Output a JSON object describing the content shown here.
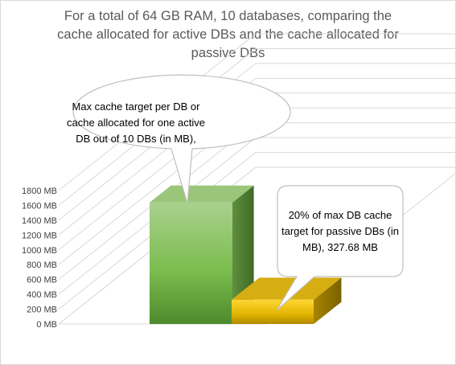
{
  "chart_data": {
    "type": "bar",
    "style": "3d-column",
    "title_lines": [
      "For a total of 64 GB RAM, 10 databases, comparing the",
      "cache allocated for active DBs and the cache allocated for",
      "passive DBs"
    ],
    "ylabels": [
      "0 MB",
      "200 MB",
      "400 MB",
      "600 MB",
      "800 MB",
      "1000 MB",
      "1200 MB",
      "1400 MB",
      "1600 MB",
      "1800 MB"
    ],
    "ylim": [
      0,
      2000
    ],
    "grid": true,
    "series": [
      {
        "values": [
          1638.4,
          327.68
        ],
        "colors": [
          "#70ad47",
          "#c9a400"
        ]
      }
    ],
    "annotations": [
      {
        "target": 0,
        "lines": [
          "Max cache target per DB or",
          "cache allocated for one active",
          "DB out of 10 DBs (in MB),"
        ]
      },
      {
        "target": 1,
        "lines": [
          "20% of max DB cache",
          "target for passive  DBs (in",
          "MB), 327.68 MB"
        ]
      }
    ]
  }
}
